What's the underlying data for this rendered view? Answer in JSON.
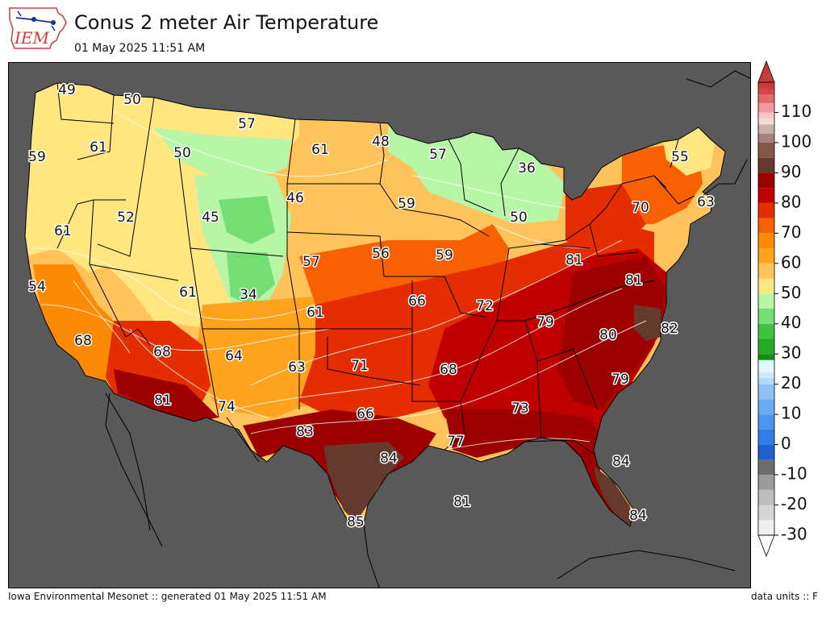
{
  "logo": {
    "text": "IEM"
  },
  "title": "Conus 2 meter Air Temperature",
  "subtitle": "01 May 2025 11:51 AM",
  "footer": {
    "left": "Iowa Environmental Mesonet :: generated 01 May 2025 11:51 AM",
    "right": "data units :: F"
  },
  "colors": {
    "ocean": "#595959",
    "land_outside": "#595959",
    "state_lines": "#000000",
    "contour_lines": "#ffffff"
  },
  "colorbar": {
    "ticks": [
      "-30",
      "-20",
      "-10",
      "0",
      "10",
      "20",
      "30",
      "40",
      "50",
      "60",
      "70",
      "80",
      "90",
      "100",
      "110"
    ],
    "levels": [
      {
        "min": -30,
        "max": -25,
        "color": "#efefef"
      },
      {
        "min": -25,
        "max": -20,
        "color": "#d6d6d6"
      },
      {
        "min": -20,
        "max": -15,
        "color": "#bdbdbd"
      },
      {
        "min": -15,
        "max": -10,
        "color": "#9a9a9a"
      },
      {
        "min": -10,
        "max": -5,
        "color": "#6e6e6e"
      },
      {
        "min": -5,
        "max": 0,
        "color": "#1f5fd0"
      },
      {
        "min": 0,
        "max": 5,
        "color": "#2f7ee6"
      },
      {
        "min": 5,
        "max": 10,
        "color": "#4a95ee"
      },
      {
        "min": 10,
        "max": 15,
        "color": "#6aaaf2"
      },
      {
        "min": 15,
        "max": 20,
        "color": "#8fc1f6"
      },
      {
        "min": 20,
        "max": 22,
        "color": "#b3d8f9"
      },
      {
        "min": 22,
        "max": 24,
        "color": "#cfe9fc"
      },
      {
        "min": 24,
        "max": 26,
        "color": "#e6f6ff"
      },
      {
        "min": 26,
        "max": 28,
        "color": "#d6fbff"
      },
      {
        "min": 28,
        "max": 30,
        "color": "#0f8f12"
      },
      {
        "min": 30,
        "max": 35,
        "color": "#25a925"
      },
      {
        "min": 35,
        "max": 40,
        "color": "#3fc33f"
      },
      {
        "min": 40,
        "max": 45,
        "color": "#74de74"
      },
      {
        "min": 45,
        "max": 50,
        "color": "#b7f5a7"
      },
      {
        "min": 50,
        "max": 55,
        "color": "#ffe680"
      },
      {
        "min": 55,
        "max": 60,
        "color": "#fec35a"
      },
      {
        "min": 60,
        "max": 65,
        "color": "#fea31e"
      },
      {
        "min": 65,
        "max": 70,
        "color": "#fd8a04"
      },
      {
        "min": 70,
        "max": 75,
        "color": "#f76103"
      },
      {
        "min": 75,
        "max": 80,
        "color": "#e42e02"
      },
      {
        "min": 80,
        "max": 85,
        "color": "#c00000"
      },
      {
        "min": 85,
        "max": 90,
        "color": "#9d0000"
      },
      {
        "min": 90,
        "max": 95,
        "color": "#643a2c"
      },
      {
        "min": 95,
        "max": 100,
        "color": "#84574a"
      },
      {
        "min": 100,
        "max": 103,
        "color": "#a5827a"
      },
      {
        "min": 103,
        "max": 106,
        "color": "#ccb0aa"
      },
      {
        "min": 106,
        "max": 108,
        "color": "#f2dcd8"
      },
      {
        "min": 108,
        "max": 110,
        "color": "#ffc4c4"
      },
      {
        "min": 110,
        "max": 113,
        "color": "#f59a9a"
      },
      {
        "min": 113,
        "max": 116,
        "color": "#e36b6b"
      },
      {
        "min": 116,
        "max": 118,
        "color": "#d34747"
      },
      {
        "min": 118,
        "max": 120,
        "color": "#c93a3a"
      }
    ]
  },
  "stations": [
    {
      "label": "49",
      "value": 49
    },
    {
      "label": "50",
      "value": 50
    },
    {
      "label": "57",
      "value": 57
    },
    {
      "label": "59",
      "value": 59
    },
    {
      "label": "61",
      "value": 61
    },
    {
      "label": "50",
      "value": 50
    },
    {
      "label": "61",
      "value": 61
    },
    {
      "label": "48",
      "value": 48
    },
    {
      "label": "57",
      "value": 57
    },
    {
      "label": "55",
      "value": 55
    },
    {
      "label": "36",
      "value": 36
    },
    {
      "label": "46",
      "value": 46
    },
    {
      "label": "59",
      "value": 59
    },
    {
      "label": "70",
      "value": 70
    },
    {
      "label": "63",
      "value": 63
    },
    {
      "label": "52",
      "value": 52
    },
    {
      "label": "45",
      "value": 45
    },
    {
      "label": "50",
      "value": 50
    },
    {
      "label": "61",
      "value": 61
    },
    {
      "label": "56",
      "value": 56
    },
    {
      "label": "59",
      "value": 59
    },
    {
      "label": "57",
      "value": 57
    },
    {
      "label": "81",
      "value": 81
    },
    {
      "label": "54",
      "value": 54
    },
    {
      "label": "61",
      "value": 61
    },
    {
      "label": "34",
      "value": 34
    },
    {
      "label": "66",
      "value": 66
    },
    {
      "label": "72",
      "value": 72
    },
    {
      "label": "81",
      "value": 81
    },
    {
      "label": "61",
      "value": 61
    },
    {
      "label": "79",
      "value": 79
    },
    {
      "label": "82",
      "value": 82
    },
    {
      "label": "68",
      "value": 68
    },
    {
      "label": "68",
      "value": 68
    },
    {
      "label": "80",
      "value": 80
    },
    {
      "label": "64",
      "value": 64
    },
    {
      "label": "71",
      "value": 71
    },
    {
      "label": "63",
      "value": 63
    },
    {
      "label": "68",
      "value": 68
    },
    {
      "label": "79",
      "value": 79
    },
    {
      "label": "81",
      "value": 81
    },
    {
      "label": "74",
      "value": 74
    },
    {
      "label": "73",
      "value": 73
    },
    {
      "label": "66",
      "value": 66
    },
    {
      "label": "83",
      "value": 83
    },
    {
      "label": "77",
      "value": 77
    },
    {
      "label": "84",
      "value": 84
    },
    {
      "label": "84",
      "value": 84
    },
    {
      "label": "81",
      "value": 81
    },
    {
      "label": "85",
      "value": 85
    },
    {
      "label": "84",
      "value": 84
    }
  ]
}
